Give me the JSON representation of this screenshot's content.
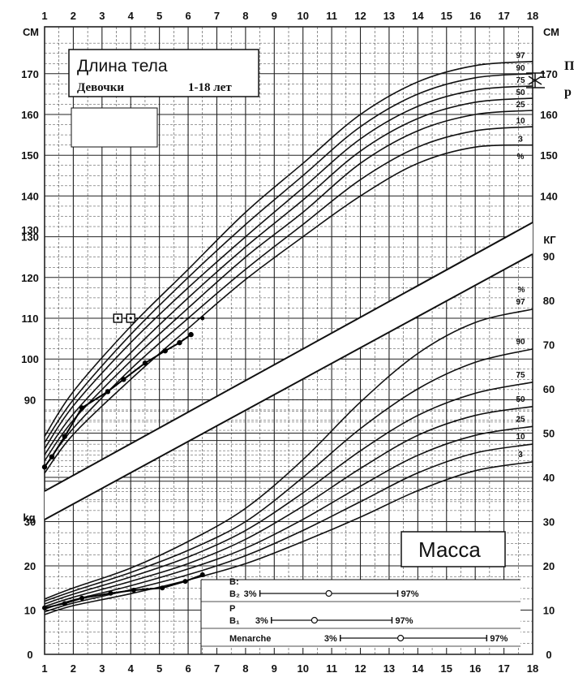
{
  "chart_data": {
    "type": "line",
    "height_panel": {
      "title": "Длина тела",
      "subtitle": "Девочки",
      "age_range": "1-18 лет",
      "unit_label": "СМ",
      "ylim": [
        65,
        178
      ],
      "y_ticks": [
        "90",
        "100",
        "110",
        "120",
        "130",
        "140",
        "150",
        "160",
        "170"
      ],
      "y_ticks_right": [
        "140",
        "150",
        "160",
        "170"
      ],
      "percentile_label": "%",
      "series": [
        {
          "name": "97",
          "x": [
            1,
            2,
            4,
            6,
            8,
            10,
            12,
            14,
            16,
            18
          ],
          "y": [
            81,
            92,
            108,
            122,
            136,
            148,
            160,
            168,
            172,
            173
          ]
        },
        {
          "name": "90",
          "x": [
            1,
            2,
            4,
            6,
            8,
            10,
            12,
            14,
            16,
            18
          ],
          "y": [
            79.5,
            90,
            106,
            120,
            133,
            145,
            157,
            165,
            169,
            170
          ]
        },
        {
          "name": "75",
          "x": [
            1,
            2,
            4,
            6,
            8,
            10,
            12,
            14,
            16,
            18
          ],
          "y": [
            78,
            88.5,
            104,
            117.5,
            130,
            142,
            154,
            162,
            166,
            167
          ]
        },
        {
          "name": "50",
          "x": [
            1,
            2,
            4,
            6,
            8,
            10,
            12,
            14,
            16,
            18
          ],
          "y": [
            76.5,
            86.5,
            101.5,
            115,
            127.5,
            139,
            151,
            159,
            163,
            164
          ]
        },
        {
          "name": "25",
          "x": [
            1,
            2,
            4,
            6,
            8,
            10,
            12,
            14,
            16,
            18
          ],
          "y": [
            75,
            85,
            99.5,
            112.5,
            125,
            136,
            148,
            156,
            160,
            161
          ]
        },
        {
          "name": "10",
          "x": [
            1,
            2,
            4,
            6,
            8,
            10,
            12,
            14,
            16,
            18
          ],
          "y": [
            73.5,
            83,
            97.5,
            110,
            122,
            133,
            144,
            152,
            156,
            157
          ]
        },
        {
          "name": "3",
          "x": [
            1,
            2,
            4,
            6,
            8,
            10,
            12,
            14,
            16,
            18
          ],
          "y": [
            72,
            81.5,
            95,
            107.5,
            119.5,
            130,
            140,
            148,
            152,
            152.5
          ]
        }
      ],
      "measurements": {
        "x": [
          1,
          1.25,
          1.7,
          2.3,
          3.2,
          3.75,
          4.5,
          5.2,
          5.7,
          6.1
        ],
        "y": [
          73.5,
          76,
          81,
          88,
          92,
          95,
          99,
          102,
          104,
          106
        ]
      },
      "projection": {
        "x": [
          3.55,
          4.0,
          6.5
        ],
        "y": [
          110,
          110,
          110
        ]
      },
      "side_labels": [
        "П",
        "р"
      ]
    },
    "weight_panel": {
      "title": "Масса",
      "unit_label_left": "kg",
      "unit_label_right": "КГ",
      "ylim": [
        0,
        92
      ],
      "y_ticks_left": [
        "0",
        "10",
        "20",
        "30"
      ],
      "y_ticks_right": [
        "0",
        "10",
        "20",
        "30",
        "40",
        "50",
        "60",
        "70",
        "80",
        "90"
      ],
      "percentile_label": "%",
      "series": [
        {
          "name": "97",
          "x": [
            1,
            2,
            4,
            6,
            8,
            10,
            12,
            14,
            16,
            18
          ],
          "y": [
            12.5,
            15,
            19.5,
            25.5,
            33,
            44,
            57,
            68,
            75,
            78
          ]
        },
        {
          "name": "90",
          "x": [
            1,
            2,
            4,
            6,
            8,
            10,
            12,
            14,
            16,
            18
          ],
          "y": [
            12,
            14.3,
            18.5,
            23.5,
            30,
            40,
            51,
            60,
            66,
            69
          ]
        },
        {
          "name": "75",
          "x": [
            1,
            2,
            4,
            6,
            8,
            10,
            12,
            14,
            16,
            18
          ],
          "y": [
            11.4,
            13.6,
            17.5,
            22,
            28,
            36.5,
            46,
            54,
            59,
            61.5
          ]
        },
        {
          "name": "50",
          "x": [
            1,
            2,
            4,
            6,
            8,
            10,
            12,
            14,
            16,
            18
          ],
          "y": [
            10.8,
            12.9,
            16.5,
            20.5,
            26,
            33.5,
            42,
            49.5,
            54,
            56
          ]
        },
        {
          "name": "25",
          "x": [
            1,
            2,
            4,
            6,
            8,
            10,
            12,
            14,
            16,
            18
          ],
          "y": [
            10.2,
            12.3,
            15.5,
            19.3,
            24,
            30.5,
            38,
            45,
            49.5,
            51.5
          ]
        },
        {
          "name": "10",
          "x": [
            1,
            2,
            4,
            6,
            8,
            10,
            12,
            14,
            16,
            18
          ],
          "y": [
            9.6,
            11.6,
            14.6,
            18,
            22.3,
            28,
            34.5,
            41,
            45.5,
            47.5
          ]
        },
        {
          "name": "3",
          "x": [
            1,
            2,
            4,
            6,
            8,
            10,
            12,
            14,
            16,
            18
          ],
          "y": [
            9,
            11,
            13.7,
            16.8,
            20.5,
            25.5,
            31,
            37,
            41.5,
            43.5
          ]
        }
      ],
      "measurements": {
        "x": [
          1,
          1.7,
          2.3,
          3.3,
          4.1,
          5.1,
          5.9,
          6.5
        ],
        "y": [
          10.5,
          11.5,
          12.7,
          13.8,
          14.5,
          15,
          16.5,
          18
        ]
      },
      "puberty": [
        {
          "label_top": "B:",
          "label": "B₂",
          "p3": "3%",
          "p97": "97%",
          "x_start": 8.5,
          "x_mid": 10.9,
          "x_end": 13.3
        },
        {
          "label_top": "P",
          "label": "B₁",
          "p3": "3%",
          "p97": "97%",
          "x_start": 8.9,
          "x_mid": 10.4,
          "x_end": 13.1
        },
        {
          "label_top": "",
          "label": "Menarche",
          "p3": "3%",
          "p97": "97%",
          "x_start": 11.3,
          "x_mid": 13.4,
          "x_end": 16.4
        }
      ]
    },
    "x_axis": {
      "ticks": [
        "1",
        "2",
        "3",
        "4",
        "5",
        "6",
        "7",
        "8",
        "9",
        "10",
        "11",
        "12",
        "13",
        "14",
        "15",
        "16",
        "17",
        "18"
      ]
    }
  }
}
